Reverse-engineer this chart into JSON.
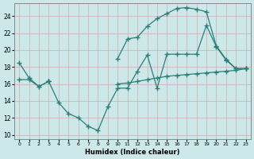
{
  "xlabel": "Humidex (Indice chaleur)",
  "bg_color": "#cce8e8",
  "line_color": "#2d7d78",
  "grid_color": "#b8d8d8",
  "xlim": [
    -0.5,
    23.5
  ],
  "ylim": [
    9.5,
    25.5
  ],
  "xticks": [
    0,
    1,
    2,
    3,
    4,
    5,
    6,
    7,
    8,
    9,
    10,
    11,
    12,
    13,
    14,
    15,
    16,
    17,
    18,
    19,
    20,
    21,
    22,
    23
  ],
  "yticks": [
    10,
    12,
    14,
    16,
    18,
    20,
    22,
    24
  ],
  "line1_x": [
    0,
    1,
    2,
    3,
    10,
    11,
    12,
    13,
    14,
    15,
    16,
    17,
    18,
    19,
    20,
    21,
    22,
    23
  ],
  "line1_y": [
    18.5,
    16.7,
    15.7,
    16.3,
    19.0,
    21.3,
    21.5,
    22.8,
    23.7,
    24.3,
    24.9,
    25.0,
    24.8,
    24.5,
    20.5,
    18.9,
    17.8,
    17.8
  ],
  "line2_x": [
    3,
    4,
    5,
    6,
    7,
    8,
    9,
    10,
    11,
    12,
    13,
    14,
    15,
    16,
    17,
    18,
    19,
    20,
    21,
    22,
    23
  ],
  "line2_y": [
    16.3,
    13.8,
    12.5,
    12.0,
    11.0,
    10.5,
    13.3,
    15.5,
    15.5,
    17.5,
    19.4,
    15.5,
    19.5,
    19.5,
    19.5,
    19.5,
    22.9,
    20.4,
    18.8,
    17.8,
    17.8
  ],
  "line3_x": [
    0,
    1,
    2,
    3,
    10,
    11,
    12,
    13,
    14,
    15,
    16,
    17,
    18,
    19,
    20,
    21,
    22,
    23
  ],
  "line3_y": [
    16.5,
    16.5,
    15.7,
    16.3,
    16.0,
    16.1,
    16.3,
    16.5,
    16.7,
    16.9,
    17.0,
    17.1,
    17.2,
    17.3,
    17.4,
    17.5,
    17.6,
    17.8
  ]
}
